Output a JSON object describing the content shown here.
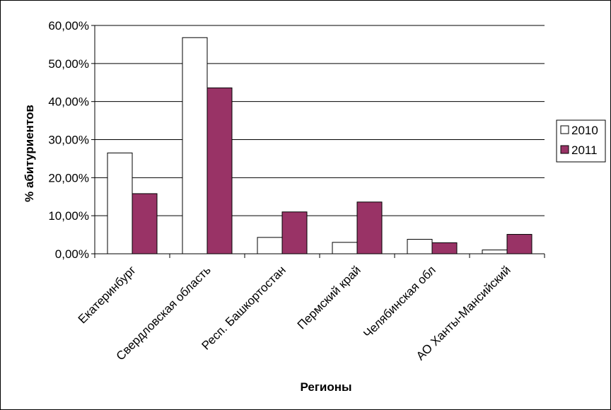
{
  "chart_data": {
    "type": "bar",
    "title": "",
    "xlabel": "Регионы",
    "ylabel": "% абитуриентов",
    "categories": [
      "Екатеринбург",
      "Свердловская область",
      "Респ. Башкортостан",
      "Пермский край",
      "Челябинская обл",
      "АО Ханты-Мансийский"
    ],
    "series": [
      {
        "name": "2010",
        "values": [
          26.5,
          56.8,
          4.3,
          3.0,
          3.8,
          1.0
        ],
        "color": "#ffffff"
      },
      {
        "name": "2011",
        "values": [
          15.8,
          43.6,
          11.0,
          13.6,
          2.9,
          5.1
        ],
        "color": "#993366"
      }
    ],
    "ylim": [
      0,
      60
    ],
    "yticks": [
      0,
      10,
      20,
      30,
      40,
      50,
      60
    ],
    "ytick_labels": [
      "0,00%",
      "10,00%",
      "20,00%",
      "30,00%",
      "40,00%",
      "50,00%",
      "60,00%"
    ],
    "grid": true,
    "legend": "right"
  }
}
